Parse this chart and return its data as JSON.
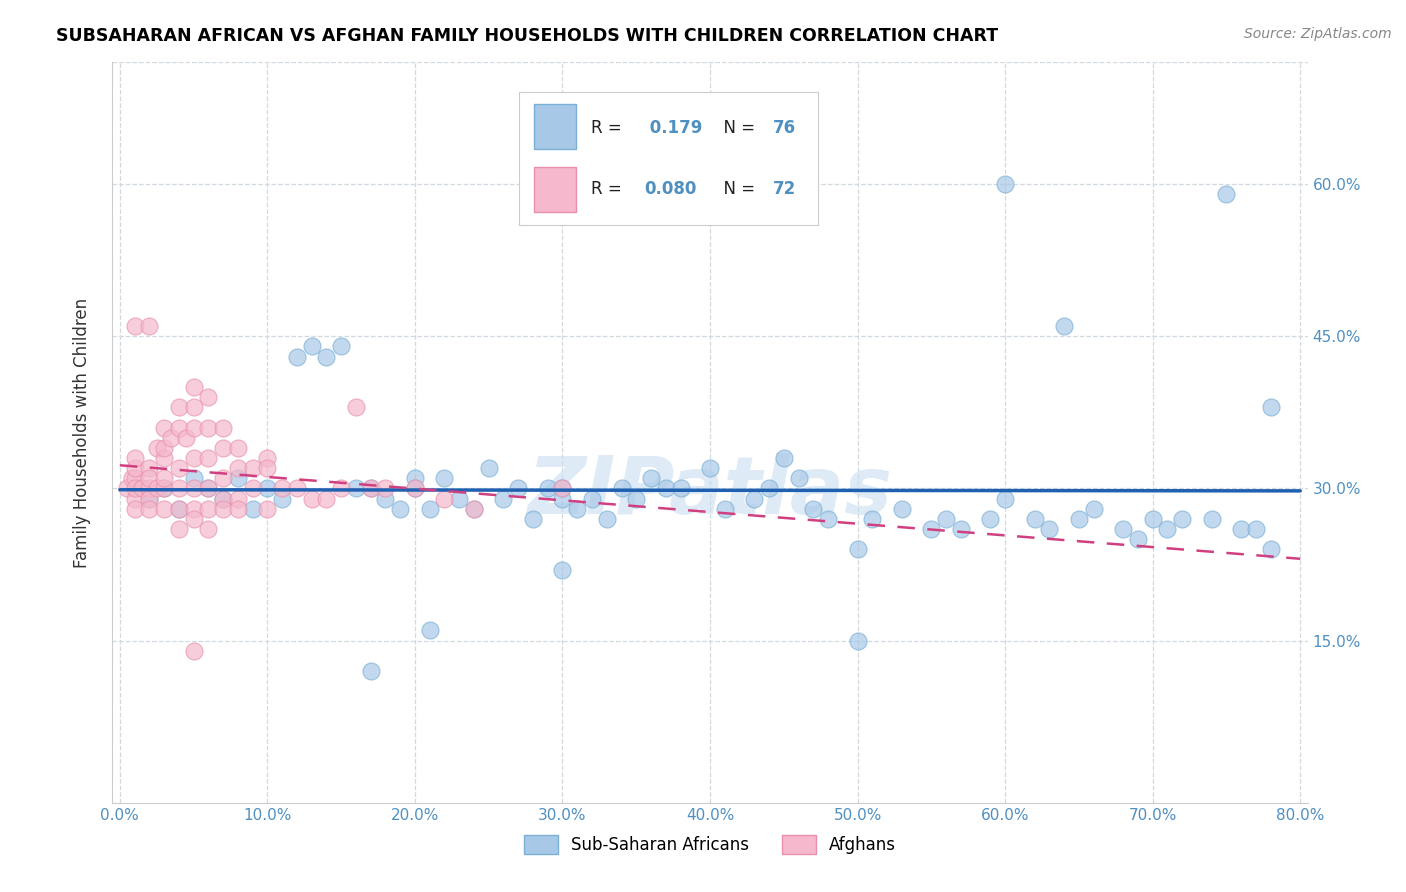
{
  "title": "SUBSAHARAN AFRICAN VS AFGHAN FAMILY HOUSEHOLDS WITH CHILDREN CORRELATION CHART",
  "source": "Source: ZipAtlas.com",
  "ylabel": "Family Households with Children",
  "blue_r": "0.179",
  "blue_n": "76",
  "pink_r": "0.080",
  "pink_n": "72",
  "blue_color": "#a8c8e8",
  "blue_edge_color": "#7aafd4",
  "pink_color": "#f5b8cc",
  "pink_edge_color": "#e890aa",
  "blue_line_color": "#2060b0",
  "pink_line_color": "#d04080",
  "pink_line_dash": "dashed",
  "watermark": "ZIPatlas",
  "watermark_color": "#c8dff0",
  "xlim": [
    -0.005,
    0.805
  ],
  "ylim": [
    -0.01,
    0.72
  ],
  "xtick_vals": [
    0.0,
    0.1,
    0.2,
    0.3,
    0.4,
    0.5,
    0.6,
    0.7,
    0.8
  ],
  "ytick_vals": [
    0.15,
    0.3,
    0.45,
    0.6
  ],
  "tick_color": "#5090c0",
  "grid_color": "#d0d8e0",
  "blue_x": [
    0.02,
    0.03,
    0.04,
    0.05,
    0.06,
    0.07,
    0.08,
    0.09,
    0.1,
    0.11,
    0.12,
    0.13,
    0.14,
    0.15,
    0.16,
    0.17,
    0.18,
    0.19,
    0.2,
    0.2,
    0.21,
    0.22,
    0.23,
    0.24,
    0.25,
    0.26,
    0.27,
    0.28,
    0.29,
    0.3,
    0.3,
    0.31,
    0.32,
    0.33,
    0.34,
    0.35,
    0.36,
    0.37,
    0.38,
    0.4,
    0.41,
    0.43,
    0.44,
    0.45,
    0.46,
    0.47,
    0.48,
    0.5,
    0.51,
    0.53,
    0.55,
    0.56,
    0.57,
    0.59,
    0.6,
    0.6,
    0.62,
    0.63,
    0.65,
    0.66,
    0.68,
    0.69,
    0.7,
    0.71,
    0.72,
    0.74,
    0.75,
    0.76,
    0.77,
    0.78,
    0.21,
    0.17,
    0.5,
    0.64,
    0.3,
    0.78
  ],
  "blue_y": [
    0.29,
    0.3,
    0.28,
    0.31,
    0.3,
    0.29,
    0.31,
    0.28,
    0.3,
    0.29,
    0.43,
    0.44,
    0.43,
    0.44,
    0.3,
    0.3,
    0.29,
    0.28,
    0.31,
    0.3,
    0.28,
    0.31,
    0.29,
    0.28,
    0.32,
    0.29,
    0.3,
    0.27,
    0.3,
    0.3,
    0.29,
    0.28,
    0.29,
    0.27,
    0.3,
    0.29,
    0.31,
    0.3,
    0.3,
    0.32,
    0.28,
    0.29,
    0.3,
    0.33,
    0.31,
    0.28,
    0.27,
    0.24,
    0.27,
    0.28,
    0.26,
    0.27,
    0.26,
    0.27,
    0.29,
    0.6,
    0.27,
    0.26,
    0.27,
    0.28,
    0.26,
    0.25,
    0.27,
    0.26,
    0.27,
    0.27,
    0.59,
    0.26,
    0.26,
    0.38,
    0.16,
    0.12,
    0.15,
    0.46,
    0.22,
    0.24
  ],
  "pink_x": [
    0.005,
    0.008,
    0.01,
    0.01,
    0.01,
    0.01,
    0.01,
    0.01,
    0.015,
    0.02,
    0.02,
    0.02,
    0.02,
    0.02,
    0.025,
    0.025,
    0.03,
    0.03,
    0.03,
    0.03,
    0.03,
    0.03,
    0.035,
    0.04,
    0.04,
    0.04,
    0.04,
    0.04,
    0.04,
    0.045,
    0.05,
    0.05,
    0.05,
    0.05,
    0.05,
    0.05,
    0.05,
    0.06,
    0.06,
    0.06,
    0.06,
    0.06,
    0.06,
    0.07,
    0.07,
    0.07,
    0.07,
    0.07,
    0.08,
    0.08,
    0.08,
    0.08,
    0.09,
    0.09,
    0.1,
    0.1,
    0.1,
    0.11,
    0.12,
    0.13,
    0.14,
    0.15,
    0.16,
    0.17,
    0.18,
    0.2,
    0.22,
    0.24,
    0.3,
    0.01,
    0.02,
    0.05
  ],
  "pink_y": [
    0.3,
    0.31,
    0.29,
    0.31,
    0.3,
    0.32,
    0.33,
    0.28,
    0.3,
    0.3,
    0.29,
    0.32,
    0.31,
    0.28,
    0.34,
    0.3,
    0.36,
    0.33,
    0.3,
    0.28,
    0.34,
    0.31,
    0.35,
    0.38,
    0.36,
    0.32,
    0.3,
    0.28,
    0.26,
    0.35,
    0.38,
    0.36,
    0.33,
    0.3,
    0.28,
    0.27,
    0.4,
    0.39,
    0.36,
    0.33,
    0.3,
    0.28,
    0.26,
    0.36,
    0.34,
    0.31,
    0.29,
    0.28,
    0.34,
    0.32,
    0.29,
    0.28,
    0.32,
    0.3,
    0.33,
    0.32,
    0.28,
    0.3,
    0.3,
    0.29,
    0.29,
    0.3,
    0.38,
    0.3,
    0.3,
    0.3,
    0.29,
    0.28,
    0.3,
    0.46,
    0.46,
    0.14
  ]
}
